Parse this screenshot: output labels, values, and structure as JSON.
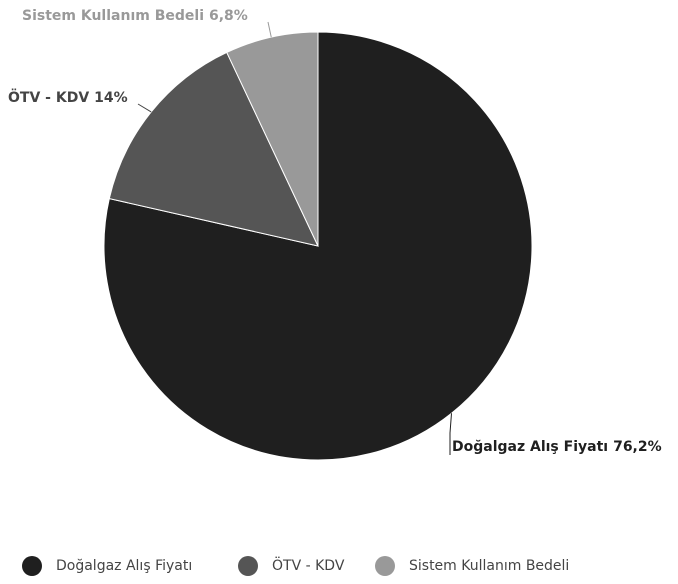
{
  "chart_data": {
    "type": "pie",
    "categories": [
      "Doğalgaz Alış Fiyatı",
      "ÖTV - KDV",
      "Sistem Kullanım Bedeli"
    ],
    "values": [
      76.2,
      14,
      6.8
    ],
    "value_labels": [
      "76,2%",
      "14%",
      "6,8%"
    ],
    "colors": [
      "#1f1f1f",
      "#555555",
      "#999999"
    ],
    "legend": "bottom"
  }
}
